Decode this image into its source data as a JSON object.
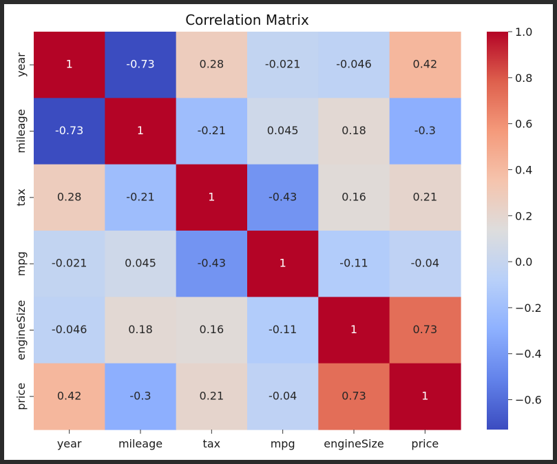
{
  "chart_data": {
    "type": "heatmap",
    "title": "Correlation Matrix",
    "labels": [
      "year",
      "mileage",
      "tax",
      "mpg",
      "engineSize",
      "price"
    ],
    "matrix": [
      [
        1,
        -0.73,
        0.28,
        -0.021,
        -0.046,
        0.42
      ],
      [
        -0.73,
        1,
        -0.21,
        0.045,
        0.18,
        -0.3
      ],
      [
        0.28,
        -0.21,
        1,
        -0.43,
        0.16,
        0.21
      ],
      [
        -0.021,
        0.045,
        -0.43,
        1,
        -0.11,
        -0.04
      ],
      [
        -0.046,
        0.18,
        0.16,
        -0.11,
        1,
        0.73
      ],
      [
        0.42,
        -0.3,
        0.21,
        -0.04,
        0.73,
        1
      ]
    ],
    "colormap": "coolwarm",
    "vmin": -0.73,
    "vmax": 1.0,
    "colorbar": {
      "ticks": [
        1.0,
        0.8,
        0.6,
        0.4,
        0.2,
        0.0,
        -0.2,
        -0.4,
        -0.6
      ],
      "tick_labels": [
        "1.0",
        "0.8",
        "0.6",
        "0.4",
        "0.2",
        "0.0",
        "−0.2",
        "−0.4",
        "−0.6"
      ],
      "placement": "right"
    },
    "annotated": true
  }
}
